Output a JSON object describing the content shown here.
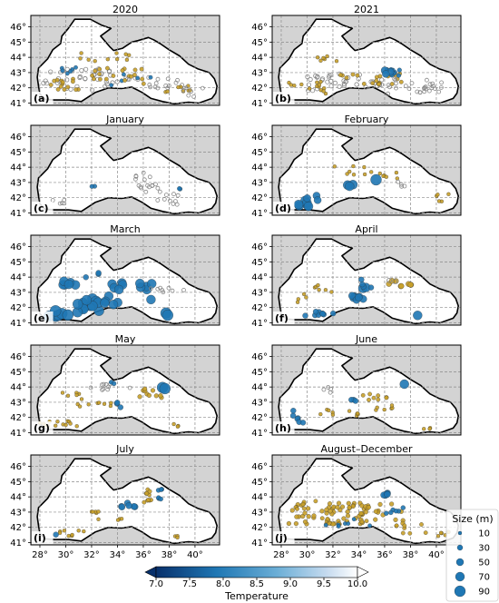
{
  "figure": {
    "x_ticks": [
      "28°",
      "30°",
      "32°",
      "34°",
      "36°",
      "38°",
      "40°"
    ],
    "y_ticks": [
      "41°",
      "42°",
      "43°",
      "44°",
      "45°",
      "46°"
    ],
    "panels": [
      {
        "id": "a",
        "title": "2020",
        "tag": "(a)"
      },
      {
        "id": "b",
        "title": "2021",
        "tag": "(b)"
      },
      {
        "id": "c",
        "title": "January",
        "tag": "(c)"
      },
      {
        "id": "d",
        "title": "February",
        "tag": "(d)"
      },
      {
        "id": "e",
        "title": "March",
        "tag": "(e)"
      },
      {
        "id": "f",
        "title": "April",
        "tag": "(f)"
      },
      {
        "id": "g",
        "title": "May",
        "tag": "(g)"
      },
      {
        "id": "h",
        "title": "June",
        "tag": "(h)"
      },
      {
        "id": "i",
        "title": "July",
        "tag": "(i)"
      },
      {
        "id": "j",
        "title": "August–December",
        "tag": "(j)"
      }
    ]
  },
  "colorbar": {
    "label": "Temperature",
    "ticks": [
      "7.0",
      "7.5",
      "8.0",
      "8.5",
      "9.0",
      "9.5",
      "10.0"
    ],
    "min": 7.0,
    "max": 10.0,
    "colors": [
      "#08306b",
      "#1f77b4",
      "#6baed6",
      "#c6dbef",
      "#ffffff"
    ]
  },
  "size_legend": {
    "title": "Size (m)",
    "entries": [
      {
        "label": "10",
        "value": 10
      },
      {
        "label": "30",
        "value": 30
      },
      {
        "label": "50",
        "value": 50
      },
      {
        "label": "70",
        "value": 70
      },
      {
        "label": "90",
        "value": 90
      }
    ]
  },
  "colors": {
    "land": "#d3d3d3",
    "sea": "#ffffff",
    "coast": "#000000",
    "grid": "#8a8a8a",
    "marker_blue": "#1f77b4",
    "marker_gold": "#c8a02a",
    "marker_grey": "#888888"
  }
}
